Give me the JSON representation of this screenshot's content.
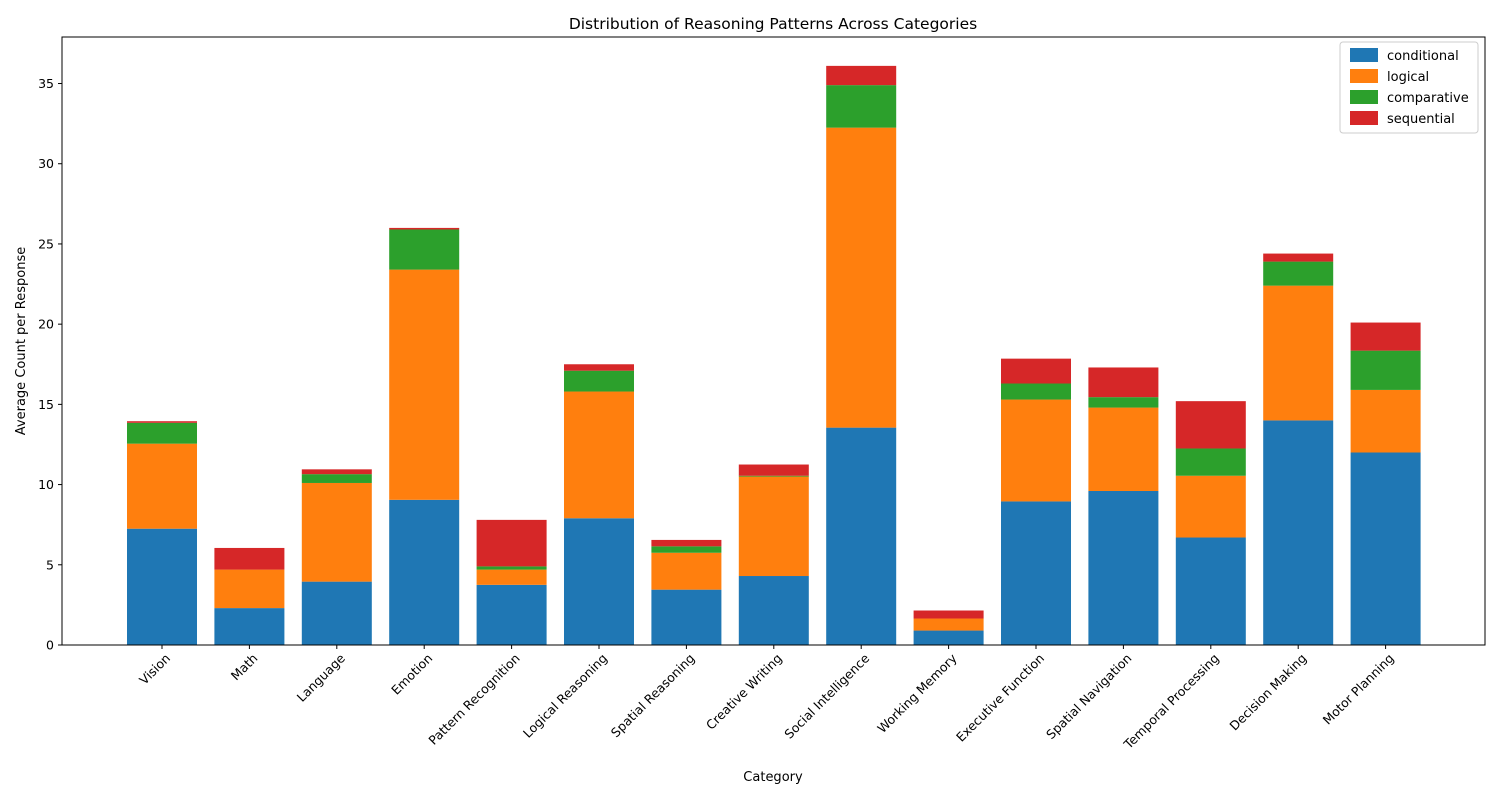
{
  "chart_data": {
    "type": "bar",
    "stacked": true,
    "title": "Distribution of Reasoning Patterns Across Categories",
    "xlabel": "Category",
    "ylabel": "Average Count per Response",
    "ylim": [
      0,
      37.9
    ],
    "yticks": [
      0,
      5,
      10,
      15,
      20,
      25,
      30,
      35
    ],
    "grid": false,
    "legend_position": "top-right",
    "categories": [
      "Vision",
      "Math",
      "Language",
      "Emotion",
      "Pattern Recognition",
      "Logical Reasoning",
      "Spatial Reasoning",
      "Creative Writing",
      "Social Intelligence",
      "Working Memory",
      "Executive Function",
      "Spatial Navigation",
      "Temporal Processing",
      "Decision Making",
      "Motor Planning"
    ],
    "series": [
      {
        "name": "conditional",
        "color": "#1f77b4",
        "values": [
          7.25,
          2.3,
          3.95,
          9.05,
          3.75,
          7.9,
          3.45,
          4.3,
          13.55,
          0.9,
          8.95,
          9.6,
          6.7,
          14.0,
          12.0
        ]
      },
      {
        "name": "logical",
        "color": "#ff7f0e",
        "values": [
          5.3,
          2.4,
          6.15,
          14.35,
          0.95,
          7.9,
          2.3,
          6.2,
          18.7,
          0.75,
          6.35,
          5.2,
          3.85,
          8.4,
          3.9
        ]
      },
      {
        "name": "comparative",
        "color": "#2ca02c",
        "values": [
          1.3,
          0.0,
          0.55,
          2.5,
          0.2,
          1.3,
          0.4,
          0.05,
          2.65,
          0.0,
          1.0,
          0.65,
          1.7,
          1.5,
          2.45
        ]
      },
      {
        "name": "sequential",
        "color": "#d62728",
        "values": [
          0.1,
          1.35,
          0.3,
          0.1,
          2.9,
          0.4,
          0.4,
          0.7,
          1.2,
          0.5,
          1.55,
          1.85,
          2.95,
          0.5,
          1.75
        ]
      }
    ]
  }
}
